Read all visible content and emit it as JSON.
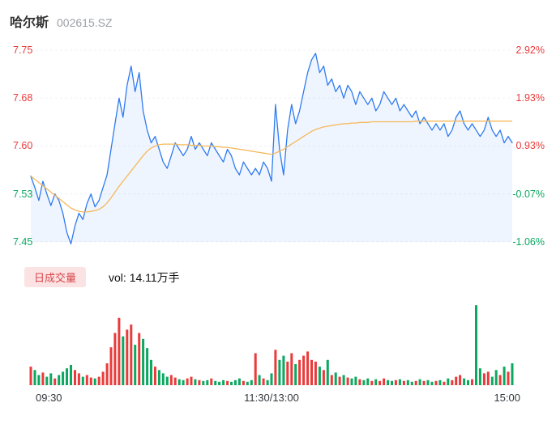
{
  "header": {
    "title": "哈尔斯",
    "code": "002615.SZ"
  },
  "legend": {
    "badge": "日成交量",
    "vol_text": "vol: 14.11万手"
  },
  "chart_data": {
    "type": "line",
    "title": "哈尔斯 002615.SZ 分时走势",
    "x_ticks": [
      "09:30",
      "11:30/13:00",
      "15:00"
    ],
    "y_ticks_left": [
      {
        "text": "7.75",
        "tone": "up"
      },
      {
        "text": "7.68",
        "tone": "up"
      },
      {
        "text": "7.60",
        "tone": "up"
      },
      {
        "text": "7.53",
        "tone": "down"
      },
      {
        "text": "7.45",
        "tone": "down"
      }
    ],
    "y_ticks_right": [
      {
        "text": "2.92%",
        "tone": "up"
      },
      {
        "text": "1.93%",
        "tone": "up"
      },
      {
        "text": "0.93%",
        "tone": "up"
      },
      {
        "text": "-0.07%",
        "tone": "down"
      },
      {
        "text": "-1.06%",
        "tone": "down"
      }
    ],
    "ylim": [
      7.455,
      7.755
    ],
    "prev_close": 7.535,
    "grid": true,
    "legend_position": "below",
    "colors": {
      "price": "#2f7bf0",
      "avg": "#f6b85a",
      "fill": "rgba(47,123,240,0.08)",
      "up": "#e93b3b",
      "down": "#0ca861"
    },
    "series": [
      {
        "name": "price",
        "values": [
          7.558,
          7.54,
          7.52,
          7.55,
          7.53,
          7.512,
          7.53,
          7.52,
          7.5,
          7.47,
          7.452,
          7.48,
          7.5,
          7.49,
          7.515,
          7.53,
          7.51,
          7.52,
          7.54,
          7.56,
          7.6,
          7.64,
          7.68,
          7.65,
          7.7,
          7.73,
          7.69,
          7.72,
          7.66,
          7.63,
          7.61,
          7.62,
          7.6,
          7.58,
          7.57,
          7.59,
          7.61,
          7.6,
          7.59,
          7.6,
          7.62,
          7.6,
          7.61,
          7.6,
          7.59,
          7.61,
          7.6,
          7.59,
          7.58,
          7.6,
          7.59,
          7.57,
          7.56,
          7.58,
          7.57,
          7.56,
          7.57,
          7.56,
          7.58,
          7.57,
          7.55,
          7.67,
          7.6,
          7.56,
          7.63,
          7.67,
          7.64,
          7.66,
          7.69,
          7.72,
          7.74,
          7.75,
          7.72,
          7.73,
          7.7,
          7.71,
          7.69,
          7.7,
          7.68,
          7.7,
          7.69,
          7.67,
          7.69,
          7.68,
          7.67,
          7.68,
          7.66,
          7.67,
          7.69,
          7.68,
          7.67,
          7.68,
          7.66,
          7.67,
          7.66,
          7.65,
          7.66,
          7.64,
          7.65,
          7.64,
          7.63,
          7.64,
          7.63,
          7.64,
          7.62,
          7.63,
          7.65,
          7.66,
          7.64,
          7.63,
          7.64,
          7.63,
          7.62,
          7.63,
          7.65,
          7.63,
          7.62,
          7.63,
          7.61,
          7.62,
          7.61
        ]
      },
      {
        "name": "avg_price",
        "values": [
          7.558,
          7.553,
          7.548,
          7.543,
          7.538,
          7.533,
          7.528,
          7.523,
          7.518,
          7.513,
          7.508,
          7.505,
          7.503,
          7.502,
          7.502,
          7.503,
          7.504,
          7.506,
          7.51,
          7.516,
          7.524,
          7.533,
          7.542,
          7.55,
          7.558,
          7.566,
          7.574,
          7.582,
          7.59,
          7.597,
          7.602,
          7.605,
          7.607,
          7.608,
          7.608,
          7.608,
          7.608,
          7.607,
          7.607,
          7.607,
          7.606,
          7.606,
          7.606,
          7.605,
          7.605,
          7.605,
          7.604,
          7.604,
          7.603,
          7.603,
          7.602,
          7.601,
          7.6,
          7.599,
          7.598,
          7.597,
          7.596,
          7.595,
          7.594,
          7.593,
          7.592,
          7.594,
          7.597,
          7.6,
          7.604,
          7.608,
          7.612,
          7.616,
          7.62,
          7.624,
          7.628,
          7.631,
          7.633,
          7.635,
          7.636,
          7.637,
          7.638,
          7.639,
          7.64,
          7.64,
          7.641,
          7.641,
          7.642,
          7.642,
          7.642,
          7.643,
          7.643,
          7.643,
          7.643,
          7.643,
          7.643,
          7.643,
          7.643,
          7.643,
          7.643,
          7.643,
          7.644,
          7.644,
          7.644,
          7.644,
          7.644,
          7.644,
          7.644,
          7.644,
          7.644,
          7.644,
          7.644,
          7.644,
          7.644,
          7.644,
          7.644,
          7.644,
          7.644,
          7.644,
          7.644,
          7.644,
          7.644,
          7.644,
          7.644,
          7.644,
          7.644
        ]
      },
      {
        "name": "volume",
        "values": [
          22,
          18,
          12,
          15,
          10,
          14,
          8,
          12,
          16,
          20,
          24,
          18,
          14,
          10,
          12,
          9,
          8,
          10,
          16,
          26,
          45,
          62,
          80,
          58,
          66,
          72,
          48,
          62,
          55,
          44,
          30,
          22,
          18,
          14,
          10,
          12,
          9,
          7,
          6,
          8,
          10,
          7,
          6,
          5,
          6,
          8,
          5,
          4,
          6,
          5,
          4,
          6,
          8,
          5,
          4,
          6,
          38,
          12,
          8,
          6,
          14,
          42,
          30,
          35,
          28,
          38,
          25,
          30,
          35,
          40,
          30,
          28,
          22,
          18,
          30,
          12,
          15,
          10,
          12,
          9,
          8,
          10,
          7,
          6,
          8,
          5,
          7,
          5,
          8,
          6,
          5,
          6,
          7,
          5,
          6,
          4,
          5,
          7,
          5,
          6,
          4,
          5,
          6,
          4,
          8,
          6,
          10,
          12,
          8,
          6,
          7,
          95,
          20,
          14,
          16,
          10,
          18,
          12,
          22,
          16,
          26
        ]
      }
    ]
  }
}
